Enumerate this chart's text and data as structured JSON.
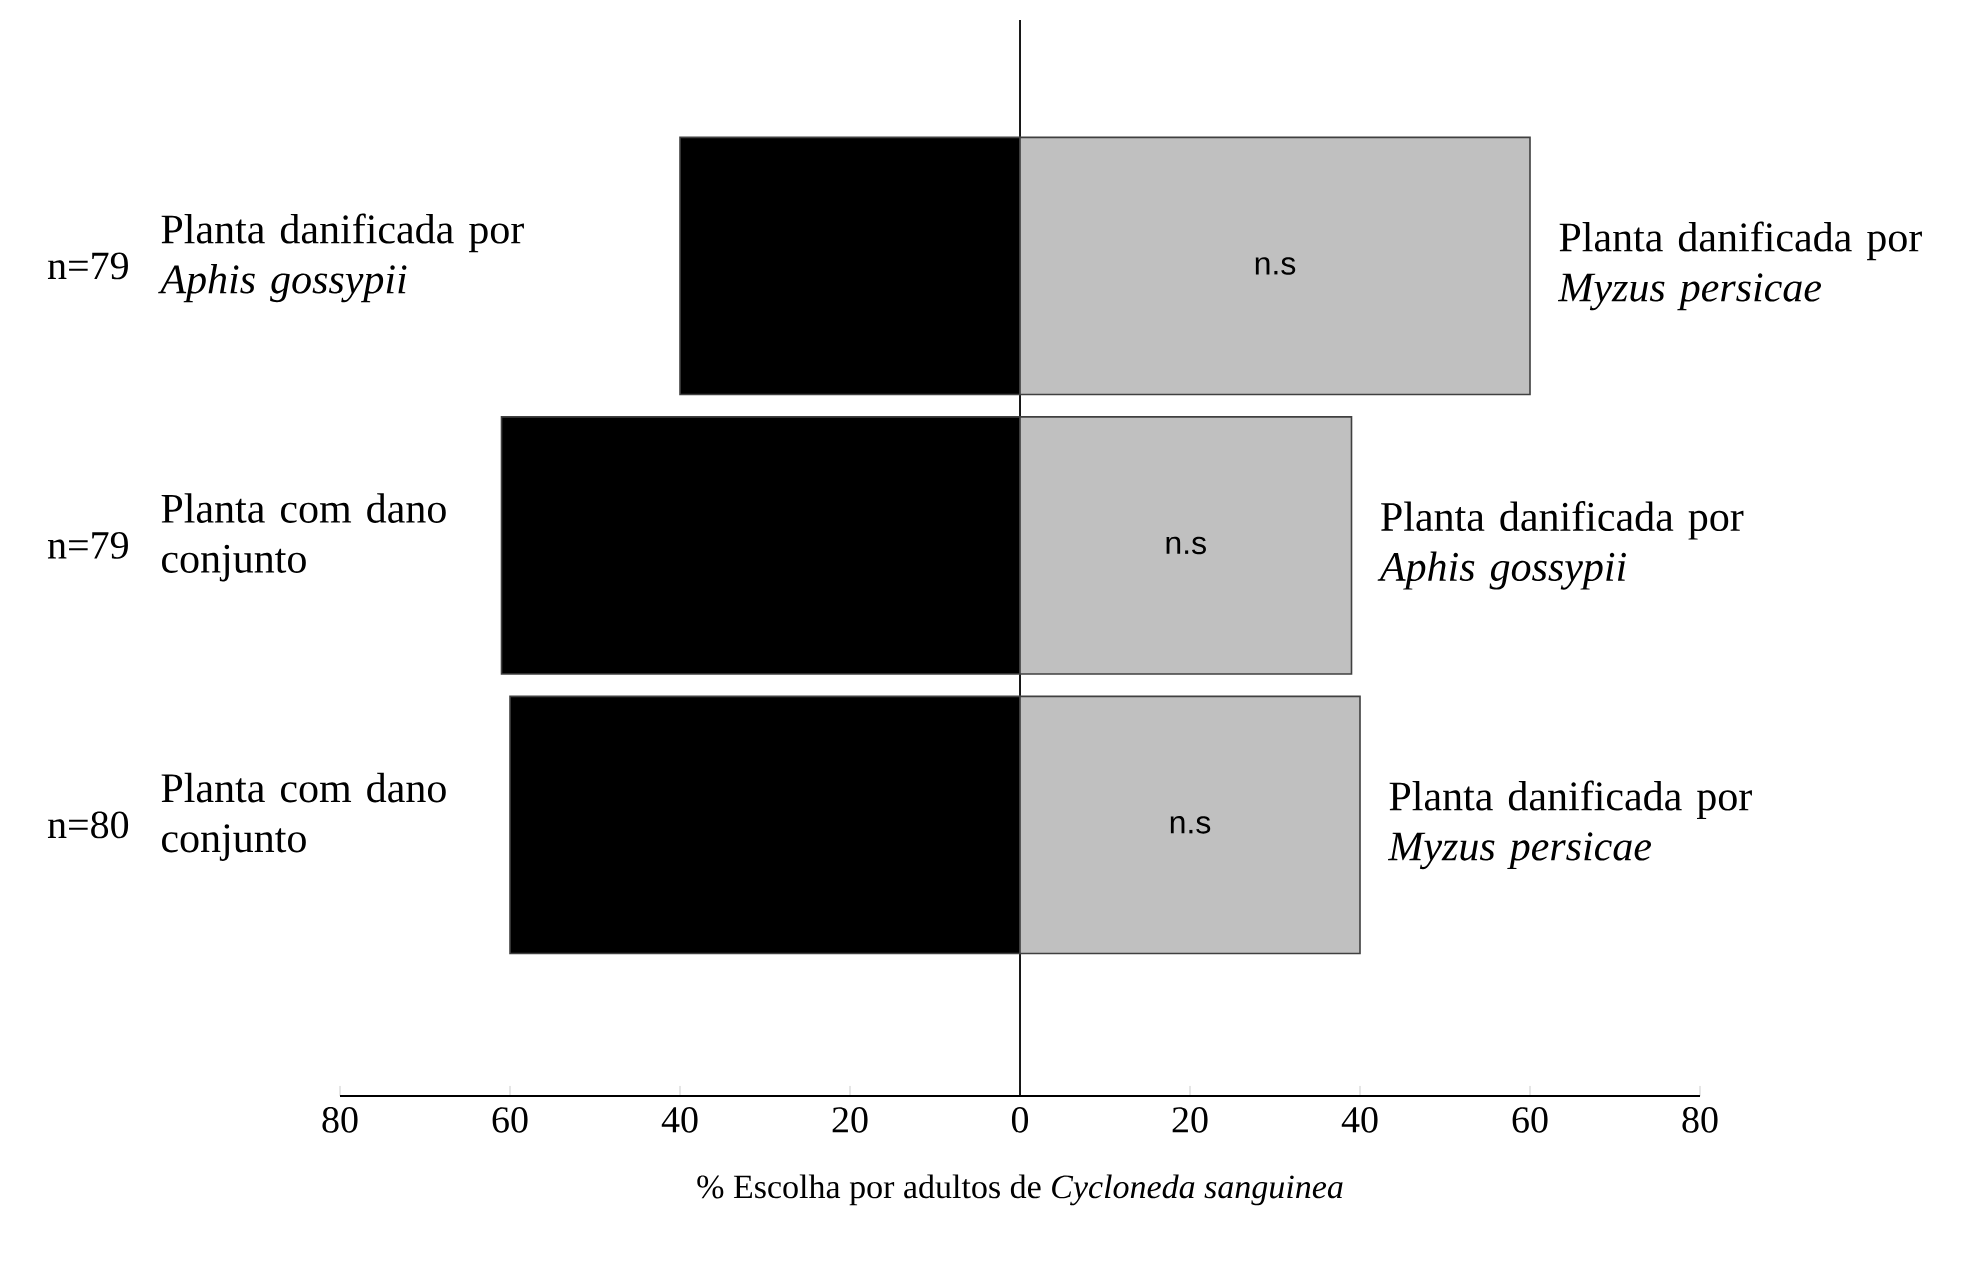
{
  "chart_data": {
    "type": "bar",
    "orientation": "horizontal",
    "stacked": true,
    "categories": [
      "n=79",
      "n=79",
      "n=80"
    ],
    "series": [
      {
        "color": "#000000",
        "values": [
          -40,
          -61,
          -60
        ]
      },
      {
        "color": "#c0c0c0",
        "values": [
          60,
          39,
          40
        ]
      }
    ],
    "xlim": [
      -80,
      80
    ],
    "xticks": [
      {
        "value": -80,
        "label": "80"
      },
      {
        "value": -60,
        "label": "60"
      },
      {
        "value": -40,
        "label": "40"
      },
      {
        "value": -20,
        "label": "20"
      },
      0,
      20,
      40,
      60,
      80
    ],
    "xlabel": "% Escolha por adultos de *Cycloneda sanguinea*",
    "annotations": [
      "Planta danificada por *Aphis gossypii*",
      "n.s",
      "Planta danificada por *Myzus persicae*",
      "Planta com dano conjunto",
      "n.s",
      "Planta danificada por *Aphis gossypii*",
      "Planta com dano conjunto",
      "n.s",
      "Planta danificada por *Myzus persicae*"
    ]
  }
}
